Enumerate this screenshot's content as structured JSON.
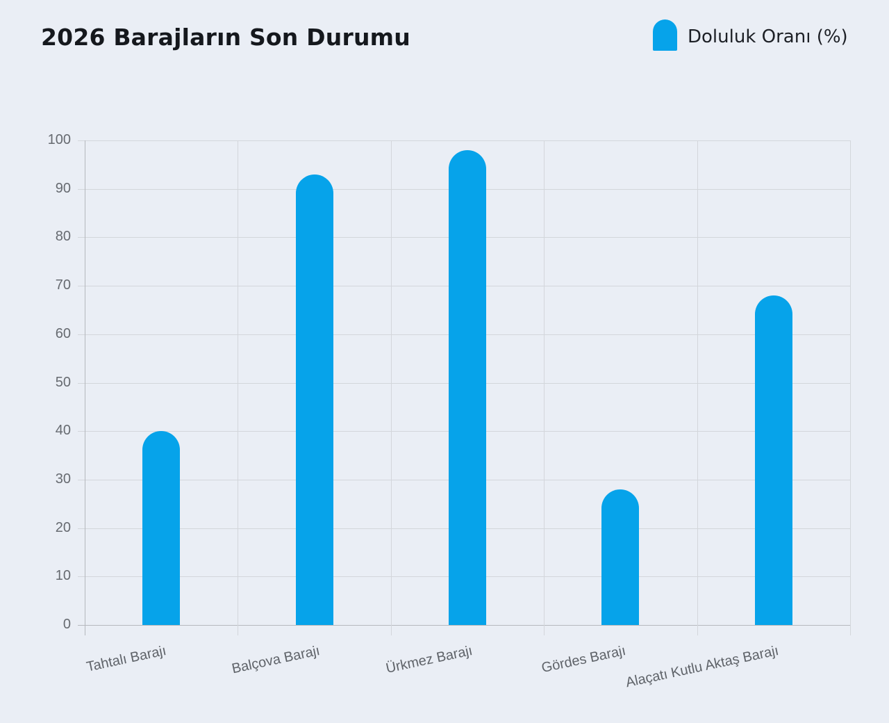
{
  "title": "2026 Barajların Son Durumu",
  "legend": {
    "label": "Doluluk Oranı (%)",
    "color": "#06a3ea"
  },
  "chart_data": {
    "type": "bar",
    "title": "2026 Barajların Son Durumu",
    "xlabel": "",
    "ylabel": "",
    "categories": [
      "Tahtalı Barajı",
      "Balçova Barajı",
      "Ürkmez Barajı",
      "Gördes Barajı",
      "Alaçatı Kutlu Aktaş Barajı"
    ],
    "series": [
      {
        "name": "Doluluk Oranı (%)",
        "values": [
          40,
          93,
          98,
          28,
          68
        ],
        "color": "#06a3ea"
      }
    ],
    "ylim": [
      0,
      100
    ],
    "yticks": [
      0,
      10,
      20,
      30,
      40,
      50,
      60,
      70,
      80,
      90,
      100
    ],
    "grid": true,
    "legend_position": "top-right",
    "bar_style": "rounded-top"
  }
}
